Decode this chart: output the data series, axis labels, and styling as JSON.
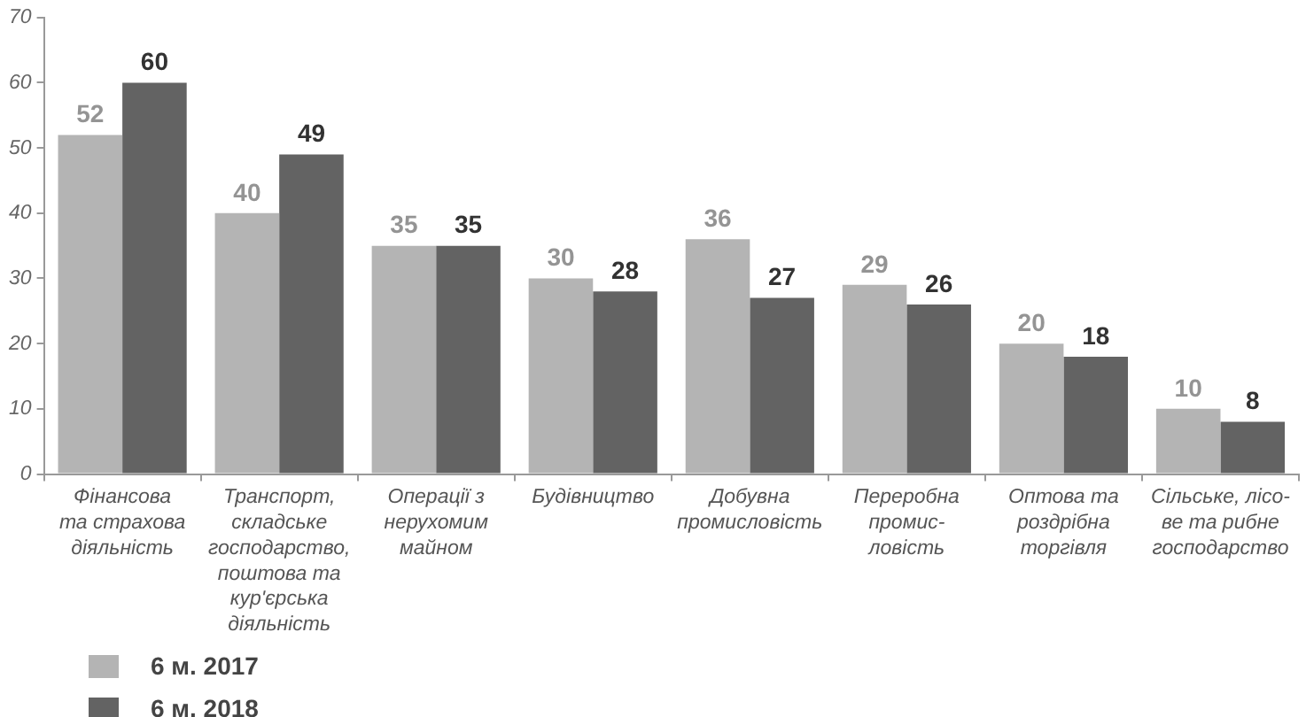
{
  "chart_data": {
    "type": "bar",
    "categories": [
      "Фінансова\nта страхова\nдіяльність",
      "Транспорт,\nскладське\nгосподарство,\nпоштова та\nкур'єрська\nдіяльність",
      "Операції з\nнерухомим\nмайном",
      "Будівництво",
      "Добувна\nпромисловість",
      "Переробна\nпромис-\nловість",
      "Оптова та\nроздрібна\nторгівля",
      "Сільське, лісо-\nве та рибне\nгосподарство"
    ],
    "series": [
      {
        "name": "6 м. 2017",
        "color": "#b4b4b4",
        "values": [
          52,
          40,
          35,
          30,
          36,
          29,
          20,
          10
        ]
      },
      {
        "name": "6 м. 2018",
        "color": "#636363",
        "values": [
          60,
          49,
          35,
          28,
          27,
          26,
          18,
          8
        ]
      }
    ],
    "ylim": [
      0,
      70
    ],
    "yticks": [
      0,
      10,
      20,
      30,
      40,
      50,
      60,
      70
    ],
    "grid": false,
    "legend": "bottom left",
    "data_labels": true
  }
}
